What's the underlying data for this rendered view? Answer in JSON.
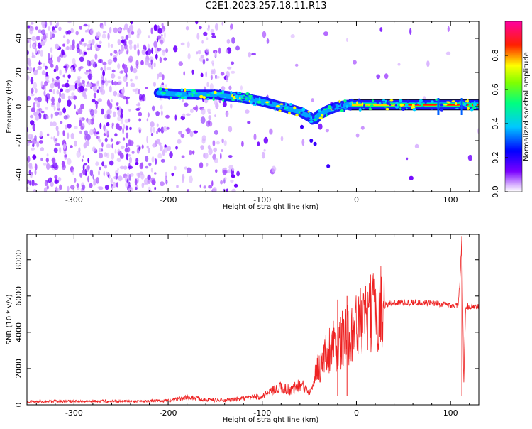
{
  "figure": {
    "title": "C2E1.2023.257.18.11.R13"
  },
  "chart_data": [
    {
      "type": "heatmap",
      "xlabel": "Height of straight line (km)",
      "ylabel": "Frequency (Hz)",
      "xlim": [
        -350,
        130
      ],
      "ylim": [
        -50,
        50
      ],
      "x_ticks": [
        -300,
        -200,
        -100,
        0,
        100
      ],
      "y_ticks": [
        -40,
        -20,
        0,
        20,
        40
      ],
      "grid": false,
      "colorbar": {
        "label": "Normalized spectral amplitude",
        "range": [
          0,
          1
        ],
        "ticks": [
          0.0,
          0.2,
          0.4,
          0.6,
          0.8
        ],
        "colors": [
          "#ffffff",
          "#cc99ff",
          "#7a00ff",
          "#0000ff",
          "#00e5ff",
          "#00ff55",
          "#ffff00",
          "#ff0000",
          "#ff00aa"
        ]
      },
      "signal_track": {
        "x": [
          -210,
          -180,
          -150,
          -120,
          -100,
          -80,
          -60,
          -50,
          -45,
          -40,
          -30,
          -20,
          -10,
          0,
          20,
          50,
          80,
          110,
          130
        ],
        "frequency": [
          8,
          7,
          7,
          5,
          3,
          0,
          -3,
          -6,
          -8,
          -5,
          -2,
          0,
          1,
          1,
          1,
          1,
          1,
          1,
          1
        ]
      }
    },
    {
      "type": "line",
      "xlabel": "Height of straight line (km)",
      "ylabel": "SNR (10 * v/v)",
      "xlim": [
        -350,
        130
      ],
      "ylim": [
        0,
        9400
      ],
      "x_ticks": [
        -300,
        -200,
        -100,
        0,
        100
      ],
      "y_ticks": [
        0,
        2000,
        4000,
        6000,
        8000
      ],
      "grid": false,
      "series": [
        {
          "color": "#ee2222",
          "x": [
            -350,
            -300,
            -250,
            -200,
            -180,
            -160,
            -140,
            -120,
            -100,
            -90,
            -80,
            -70,
            -60,
            -50,
            -45,
            -40,
            -35,
            -30,
            -25,
            -20,
            -15,
            -10,
            -5,
            0,
            5,
            10,
            20,
            30,
            40,
            60,
            80,
            100,
            108,
            110,
            112,
            114,
            116,
            120,
            130
          ],
          "y": [
            150,
            180,
            170,
            190,
            350,
            250,
            200,
            300,
            400,
            600,
            800,
            700,
            900,
            700,
            1200,
            2000,
            2500,
            3000,
            3400,
            3200,
            3600,
            3800,
            4200,
            4300,
            4600,
            4800,
            5200,
            5500,
            5650,
            5650,
            5600,
            5500,
            5450,
            6800,
            9300,
            1200,
            5400,
            5450,
            5400
          ]
        }
      ]
    }
  ]
}
